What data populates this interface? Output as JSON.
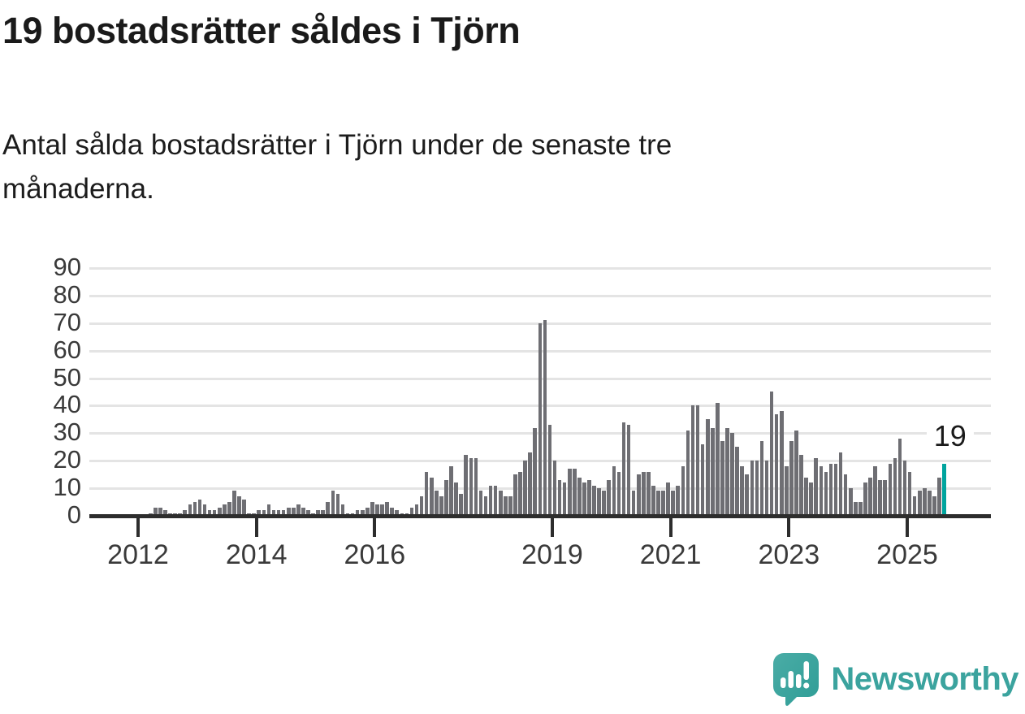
{
  "header": {
    "title": "19 bostadsrätter såldes i Tjörn",
    "subtitle": "Antal sålda bostadsrätter i Tjörn under de senaste tre månaderna."
  },
  "annotation": {
    "label": "19"
  },
  "branding": {
    "name": "Newsworthy",
    "icon": "speech-bubble-bar-chart-icon"
  },
  "colors": {
    "bar": "#6e6e73",
    "highlight": "#00a49e",
    "axis": "#2d2d2d",
    "gridline": "#e4e4e4",
    "text": "#1a1a1a",
    "brand_teal": "#3ba39e"
  },
  "chart_data": {
    "type": "bar",
    "title": "",
    "xlabel": "",
    "ylabel": "",
    "x_start": "2012-01",
    "x_end": "2025-08",
    "x_frequency": "monthly",
    "values": [
      0,
      0,
      1,
      3,
      3,
      2,
      1,
      1,
      1,
      2,
      4,
      5,
      6,
      4,
      2,
      2,
      3,
      4,
      5,
      9,
      7,
      6,
      1,
      1,
      2,
      2,
      4,
      2,
      2,
      2,
      3,
      3,
      4,
      3,
      2,
      1,
      2,
      2,
      5,
      9,
      8,
      4,
      1,
      1,
      2,
      2,
      3,
      5,
      4,
      4,
      5,
      3,
      2,
      1,
      1,
      3,
      4,
      7,
      16,
      14,
      9,
      7,
      13,
      18,
      12,
      8,
      22,
      21,
      21,
      9,
      7,
      11,
      11,
      9,
      7,
      7,
      15,
      16,
      20,
      23,
      32,
      70,
      71,
      33,
      20,
      13,
      12,
      17,
      17,
      14,
      12,
      13,
      11,
      10,
      9,
      13,
      18,
      16,
      34,
      33,
      9,
      15,
      16,
      16,
      11,
      9,
      9,
      12,
      9,
      11,
      18,
      31,
      40,
      40,
      26,
      35,
      32,
      41,
      27,
      32,
      30,
      25,
      18,
      15,
      20,
      20,
      27,
      20,
      45,
      37,
      38,
      18,
      27,
      31,
      22,
      14,
      12,
      21,
      18,
      16,
      19,
      19,
      23,
      15,
      10,
      5,
      5,
      12,
      14,
      18,
      13,
      13,
      19,
      21,
      28,
      20,
      16,
      7,
      9,
      10,
      9,
      7,
      14,
      19
    ],
    "highlight_last": true,
    "highlight_value": 19,
    "ylim": [
      0,
      90
    ],
    "yticks": [
      0,
      10,
      20,
      30,
      40,
      50,
      60,
      70,
      80,
      90
    ],
    "xtick_years": [
      2012,
      2014,
      2016,
      2019,
      2021,
      2023,
      2025
    ],
    "grid": "horizontal",
    "legend": "none"
  }
}
